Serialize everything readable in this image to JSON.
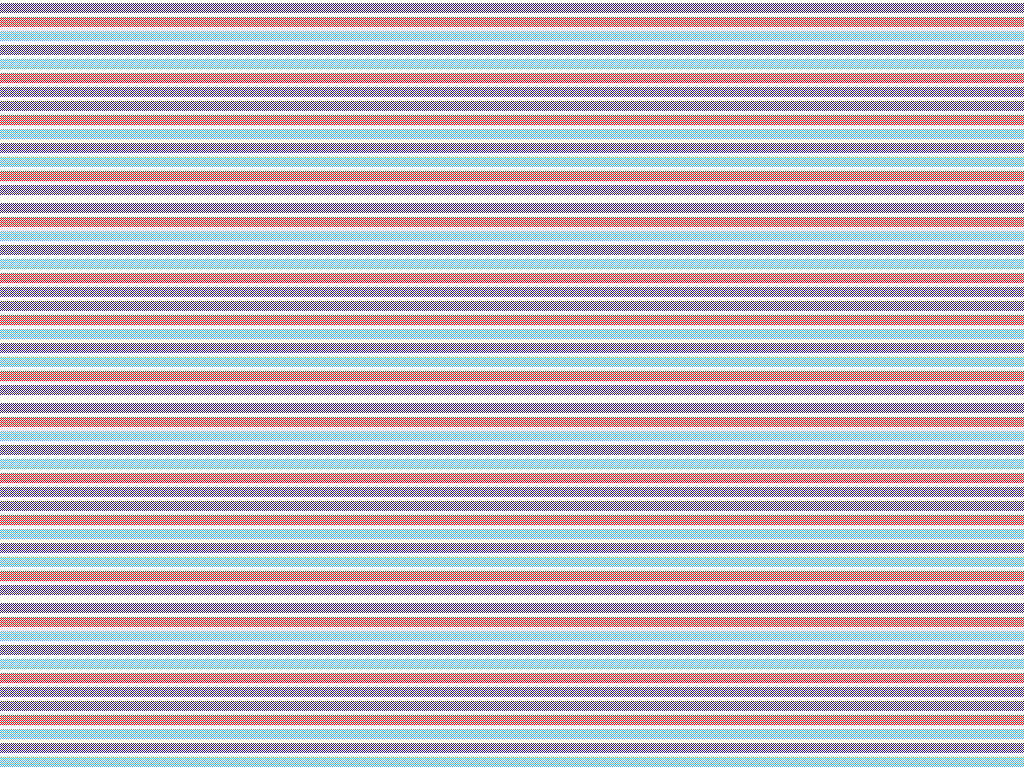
{
  "pattern": {
    "fill": "checkerboard-dither",
    "background": "#ffffff",
    "colors": {
      "purple": "#3c1e8c",
      "red": "#ff1010",
      "blue": "#4ab4ff"
    },
    "cycle": [
      "purple",
      "red",
      "blue",
      "purple",
      "blue",
      "red",
      "purple",
      "purple",
      "red",
      "blue",
      "purple",
      "blue",
      "red",
      "purple"
    ],
    "cycle_count": 4
  }
}
